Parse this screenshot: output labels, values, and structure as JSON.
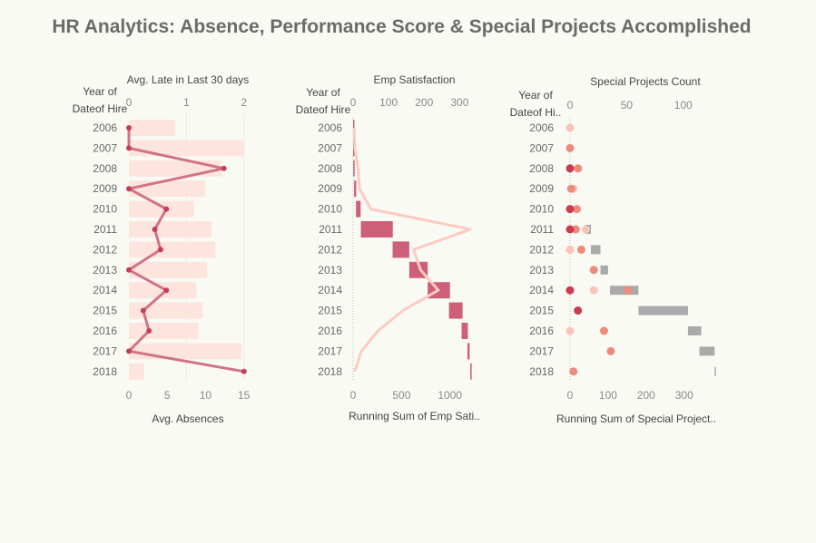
{
  "title": "HR Analytics: Absence, Performance Score & Special Projects Accomplished",
  "colors": {
    "background": "#fafaf5",
    "bar_light": "#fde5de",
    "line_rose": "#d17386",
    "dot_rose": "#c43f5c",
    "bar_rose": "#cd5f78",
    "line_peach": "#fdcbc0",
    "gray_bar": "#aaaaaa",
    "dot_dark": "#cc3a50",
    "dot_salmon": "#ef8a7c",
    "dot_pale": "#fbc4b8"
  },
  "row_header": "Year of\nDateof Hire",
  "row_header_short": "Year of\nDateof Hi..",
  "chart_data": [
    {
      "type": "bar",
      "panel": "left",
      "title": "Avg. Late in Last 30 days",
      "xlabel": "Avg. Absences",
      "categories": [
        "2006",
        "2007",
        "2008",
        "2009",
        "2010",
        "2011",
        "2012",
        "2013",
        "2014",
        "2015",
        "2016",
        "2017",
        "2018"
      ],
      "top_axis": {
        "label": "Avg. Late in Last 30 days",
        "ticks": [
          0,
          1,
          2
        ],
        "range": [
          0,
          2.05
        ]
      },
      "bottom_axis": {
        "label": "Avg. Absences",
        "ticks": [
          0,
          5,
          10,
          15
        ],
        "range": [
          0,
          15.4
        ]
      },
      "series": [
        {
          "name": "Avg. Absences",
          "mark": "bar",
          "values": [
            6.0,
            15.0,
            12.0,
            10.0,
            8.5,
            10.8,
            11.3,
            10.2,
            8.8,
            9.6,
            9.1,
            14.7,
            2.0
          ]
        },
        {
          "name": "Avg. Late in Last 30 days",
          "mark": "line",
          "values": [
            0.0,
            0.0,
            1.65,
            0.0,
            0.65,
            0.45,
            0.55,
            0.0,
            0.65,
            0.25,
            0.35,
            0.0,
            2.0
          ]
        }
      ]
    },
    {
      "type": "bar",
      "panel": "middle",
      "title": "Emp Satisfaction",
      "xlabel": "Running Sum of Emp Sati..",
      "categories": [
        "2006",
        "2007",
        "2008",
        "2009",
        "2010",
        "2011",
        "2012",
        "2013",
        "2014",
        "2015",
        "2016",
        "2017",
        "2018"
      ],
      "top_axis": {
        "label": "Emp Satisfaction",
        "ticks": [
          0,
          100,
          200,
          300
        ],
        "range": [
          0,
          345
        ]
      },
      "bottom_axis": {
        "label": "Running Sum of Emp Sati..",
        "ticks": [
          0,
          500,
          1000
        ],
        "range": [
          0,
          1265
        ]
      },
      "series": [
        {
          "name": "Running Sum of Emp Satisfaction",
          "mark": "gantt",
          "start": [
            0,
            0,
            2,
            10,
            30,
            80,
            408,
            580,
            770,
            990,
            1120,
            1180,
            1210
          ],
          "end": [
            3,
            5,
            12,
            32,
            78,
            410,
            580,
            770,
            1000,
            1130,
            1185,
            1203,
            1215
          ]
        },
        {
          "name": "Emp Satisfaction",
          "mark": "line",
          "values": [
            3,
            5,
            14,
            18,
            50,
            330,
            170,
            190,
            240,
            140,
            70,
            23,
            5
          ]
        }
      ]
    },
    {
      "type": "scatter",
      "panel": "right",
      "title": "Special Projects Count",
      "xlabel": "Running Sum of Special Project..",
      "categories": [
        "2006",
        "2007",
        "2008",
        "2009",
        "2010",
        "2011",
        "2012",
        "2013",
        "2014",
        "2015",
        "2016",
        "2017",
        "2018"
      ],
      "top_axis": {
        "label": "Special Projects Count",
        "ticks": [
          0,
          50,
          100
        ],
        "range": [
          0,
          133
        ]
      },
      "bottom_axis": {
        "label": "Running Sum of Special Project..",
        "ticks": [
          0,
          100,
          200,
          300
        ],
        "range": [
          0,
          396
        ]
      },
      "series": [
        {
          "name": "Running Sum of Special Projects",
          "mark": "gantt",
          "start": [
            0,
            0,
            0,
            0,
            0,
            40,
            55,
            80,
            105,
            180,
            310,
            340,
            380
          ],
          "end": [
            0,
            0,
            0,
            0,
            0,
            55,
            80,
            100,
            180,
            310,
            345,
            380,
            383
          ]
        },
        {
          "name": "Special Projects (dark)",
          "mark": "circle",
          "values": [
            null,
            null,
            0,
            null,
            0,
            0,
            null,
            null,
            0,
            7,
            null,
            null,
            null
          ]
        },
        {
          "name": "Special Projects (salmon)",
          "mark": "circle",
          "values": [
            null,
            0,
            7,
            1,
            6,
            5,
            10,
            21,
            51,
            null,
            30,
            36,
            3
          ]
        },
        {
          "name": "Special Projects (pale)",
          "mark": "circle",
          "values": [
            0,
            null,
            null,
            3,
            null,
            14,
            0,
            null,
            21,
            null,
            0,
            null,
            null
          ]
        }
      ]
    }
  ]
}
